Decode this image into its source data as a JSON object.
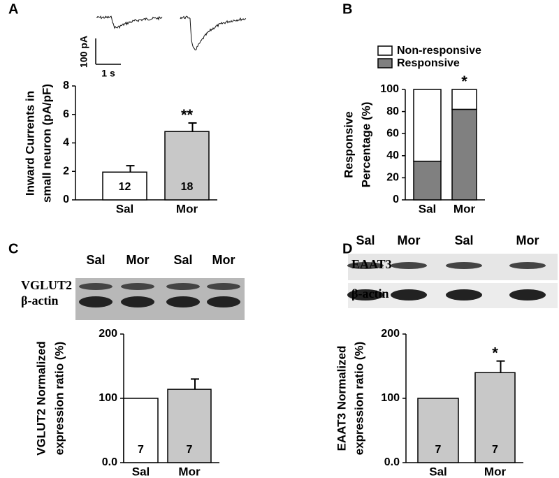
{
  "chart_data": [
    {
      "type": "bar",
      "panel": "A",
      "ylabel": [
        "Inward Currents in",
        "small neuron (pA/pF)"
      ],
      "categories": [
        "Sal",
        "Mor"
      ],
      "values": [
        1.95,
        4.8
      ],
      "errors": [
        0.45,
        0.6
      ],
      "colors": [
        "#ffffff",
        "#c8c8c8"
      ],
      "n_labels": [
        "12",
        "18"
      ],
      "significance": [
        null,
        "**"
      ],
      "ylim": [
        0,
        8
      ],
      "yticks": [
        0,
        2,
        4,
        6,
        8
      ],
      "scale_bar": {
        "y": "100 pA",
        "x": "1 s"
      }
    },
    {
      "type": "stacked_bar",
      "panel": "B",
      "ylabel": [
        "Responsive",
        "Percentage (%)"
      ],
      "categories": [
        "Sal",
        "Mor"
      ],
      "series": [
        {
          "name": "Responsive",
          "color": "#808080",
          "values": [
            35,
            82
          ]
        },
        {
          "name": "Non-responsive",
          "color": "#ffffff",
          "values": [
            65,
            18
          ]
        }
      ],
      "significance": [
        null,
        "*"
      ],
      "ylim": [
        0,
        100
      ],
      "yticks": [
        0,
        20,
        40,
        60,
        80,
        100
      ]
    },
    {
      "type": "bar",
      "panel": "C",
      "ylabel": [
        "VGLUT2 Normalized",
        "expression ratio (%)"
      ],
      "blot": {
        "lanes": [
          "Sal",
          "Mor",
          "Sal",
          "Mor"
        ],
        "rows": [
          "VGLUT2",
          "β-actin"
        ]
      },
      "categories": [
        "Sal",
        "Mor"
      ],
      "values": [
        100,
        114
      ],
      "errors": [
        0,
        16
      ],
      "colors": [
        "#ffffff",
        "#c8c8c8"
      ],
      "n_labels": [
        "7",
        "7"
      ],
      "ylim": [
        0,
        200
      ],
      "yticks": [
        {
          "value": 0,
          "label": "0.0"
        },
        100,
        200
      ]
    },
    {
      "type": "bar",
      "panel": "D",
      "ylabel": [
        "EAAT3 Normalized",
        "expression ratio (%)"
      ],
      "blot": {
        "lanes": [
          "Sal",
          "Mor",
          "Sal",
          "Mor"
        ],
        "rows": [
          "EAAT3",
          "β-actin"
        ]
      },
      "categories": [
        "Sal",
        "Mor"
      ],
      "values": [
        100,
        140
      ],
      "errors": [
        0,
        18
      ],
      "colors": [
        "#c8c8c8",
        "#c8c8c8"
      ],
      "n_labels": [
        "7",
        "7"
      ],
      "significance": [
        null,
        "*"
      ],
      "ylim": [
        0,
        200
      ],
      "yticks": [
        {
          "value": 0,
          "label": "0.0"
        },
        100,
        200
      ]
    }
  ]
}
